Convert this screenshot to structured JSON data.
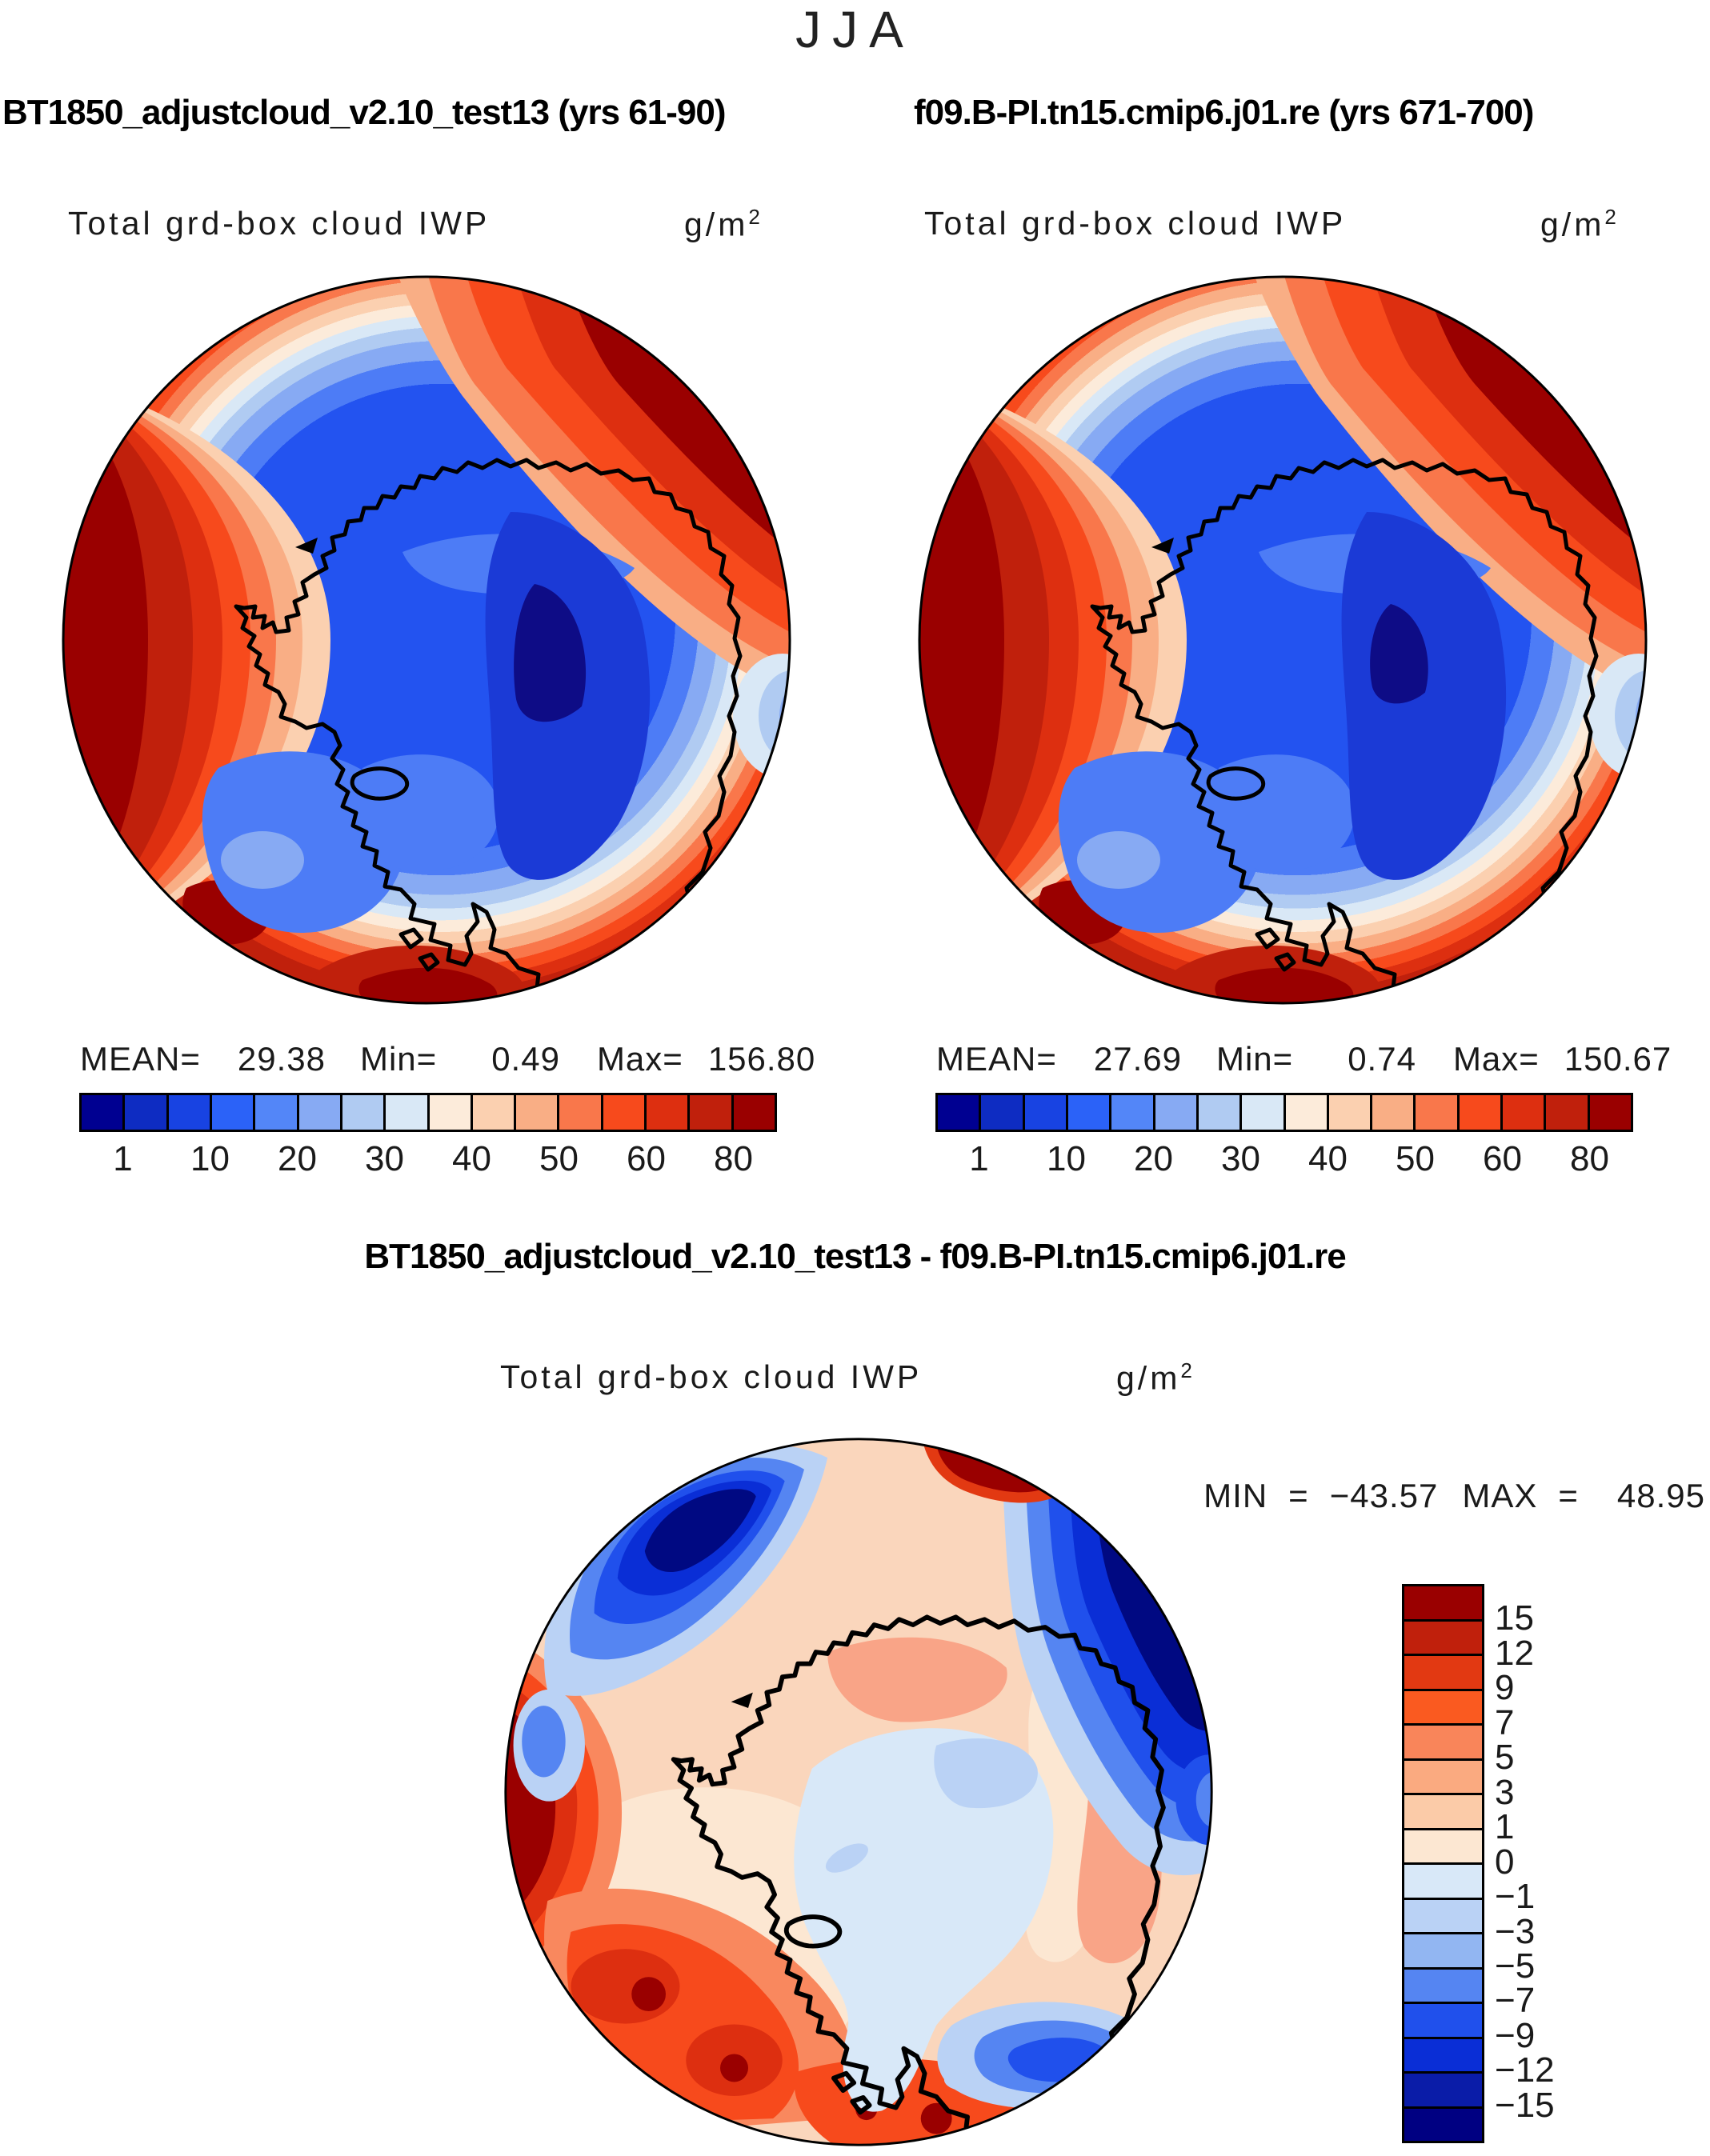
{
  "page": {
    "season_title": "JJA"
  },
  "panel_left": {
    "title": "BT1850_adjustcloud_v2.10_test13 (yrs 61-90)",
    "field": "Total grd-box cloud IWP",
    "units_base": "g/m",
    "units_exp": "2",
    "mean_label": "MEAN=",
    "mean": "29.38",
    "min_label": "Min=",
    "min": "0.49",
    "max_label": "Max=",
    "max": "156.80",
    "ticks": [
      "1",
      "10",
      "20",
      "30",
      "40",
      "50",
      "60",
      "80"
    ]
  },
  "panel_right": {
    "title": "f09.B-PI.tn15.cmip6.j01.re (yrs 671-700)",
    "field": "Total grd-box cloud IWP",
    "units_base": "g/m",
    "units_exp": "2",
    "mean_label": "MEAN=",
    "mean": "27.69",
    "min_label": "Min=",
    "min": "0.74",
    "max_label": "Max=",
    "max": "150.67",
    "ticks": [
      "1",
      "10",
      "20",
      "30",
      "40",
      "50",
      "60",
      "80"
    ]
  },
  "panel_diff": {
    "title": "BT1850_adjustcloud_v2.10_test13 - f09.B-PI.tn15.cmip6.j01.re",
    "field": "Total grd-box cloud IWP",
    "units_base": "g/m",
    "units_exp": "2",
    "min_label": "MIN",
    "eq1": "=",
    "min": "−43.57",
    "max_label": "MAX",
    "eq2": "=",
    "max": "48.95",
    "ticks": [
      "15",
      "12",
      "9",
      "7",
      "5",
      "3",
      "1",
      "0",
      "−1",
      "−3",
      "−5",
      "−7",
      "−9",
      "−12",
      "−15"
    ]
  },
  "colorbars": {
    "iwp_colors": [
      "#000091",
      "#0E2CC2",
      "#1843E2",
      "#2B62F8",
      "#5386F8",
      "#87AAF3",
      "#B0CBF2",
      "#D9E8F6",
      "#FCEBDA",
      "#FBD0B0",
      "#F9AE85",
      "#F9774B",
      "#F74A1C",
      "#DD2F10",
      "#C0200C",
      "#9A0000"
    ],
    "diff_colors": [
      "#9A0000",
      "#C0200C",
      "#E23912",
      "#FA5A20",
      "#F9855A",
      "#FAAA80",
      "#FBCBA8",
      "#FCE7D2",
      "#D8E8F8",
      "#BAD2F5",
      "#92B6F2",
      "#5585F2",
      "#2050EC",
      "#0A2ED6",
      "#0A1CA8",
      "#000082"
    ]
  },
  "chart_data": [
    {
      "type": "heatmap",
      "subtype": "south_polar_stereographic_contour_map",
      "season": "JJA",
      "title": "BT1850_adjustcloud_v2.10_test13 (yrs 61-90)",
      "variable": "Total grd-box cloud IWP",
      "units": "g/m2",
      "region": "Antarctica / Southern Ocean",
      "stats": {
        "mean": 29.38,
        "min": 0.49,
        "max": 156.8
      },
      "contour_levels": [
        1,
        5,
        10,
        15,
        20,
        25,
        30,
        35,
        40,
        45,
        50,
        55,
        60,
        70,
        80
      ],
      "labeled_levels": [
        1,
        10,
        20,
        30,
        40,
        50,
        60,
        80
      ],
      "palette_ref": "colorbars.iwp_colors",
      "legend_position": "bottom"
    },
    {
      "type": "heatmap",
      "subtype": "south_polar_stereographic_contour_map",
      "season": "JJA",
      "title": "f09.B-PI.tn15.cmip6.j01.re (yrs 671-700)",
      "variable": "Total grd-box cloud IWP",
      "units": "g/m2",
      "region": "Antarctica / Southern Ocean",
      "stats": {
        "mean": 27.69,
        "min": 0.74,
        "max": 150.67
      },
      "contour_levels": [
        1,
        5,
        10,
        15,
        20,
        25,
        30,
        35,
        40,
        45,
        50,
        55,
        60,
        70,
        80
      ],
      "labeled_levels": [
        1,
        10,
        20,
        30,
        40,
        50,
        60,
        80
      ],
      "palette_ref": "colorbars.iwp_colors",
      "legend_position": "bottom"
    },
    {
      "type": "heatmap",
      "subtype": "south_polar_stereographic_contour_map_difference",
      "season": "JJA",
      "title": "BT1850_adjustcloud_v2.10_test13 - f09.B-PI.tn15.cmip6.j01.re",
      "variable": "Total grd-box cloud IWP",
      "units": "g/m2",
      "region": "Antarctica / Southern Ocean",
      "stats": {
        "min": -43.57,
        "max": 48.95
      },
      "contour_levels": [
        -15,
        -12,
        -9,
        -7,
        -5,
        -3,
        -1,
        0,
        1,
        3,
        5,
        7,
        9,
        12,
        15
      ],
      "palette_ref": "colorbars.diff_colors",
      "legend_position": "right"
    }
  ]
}
